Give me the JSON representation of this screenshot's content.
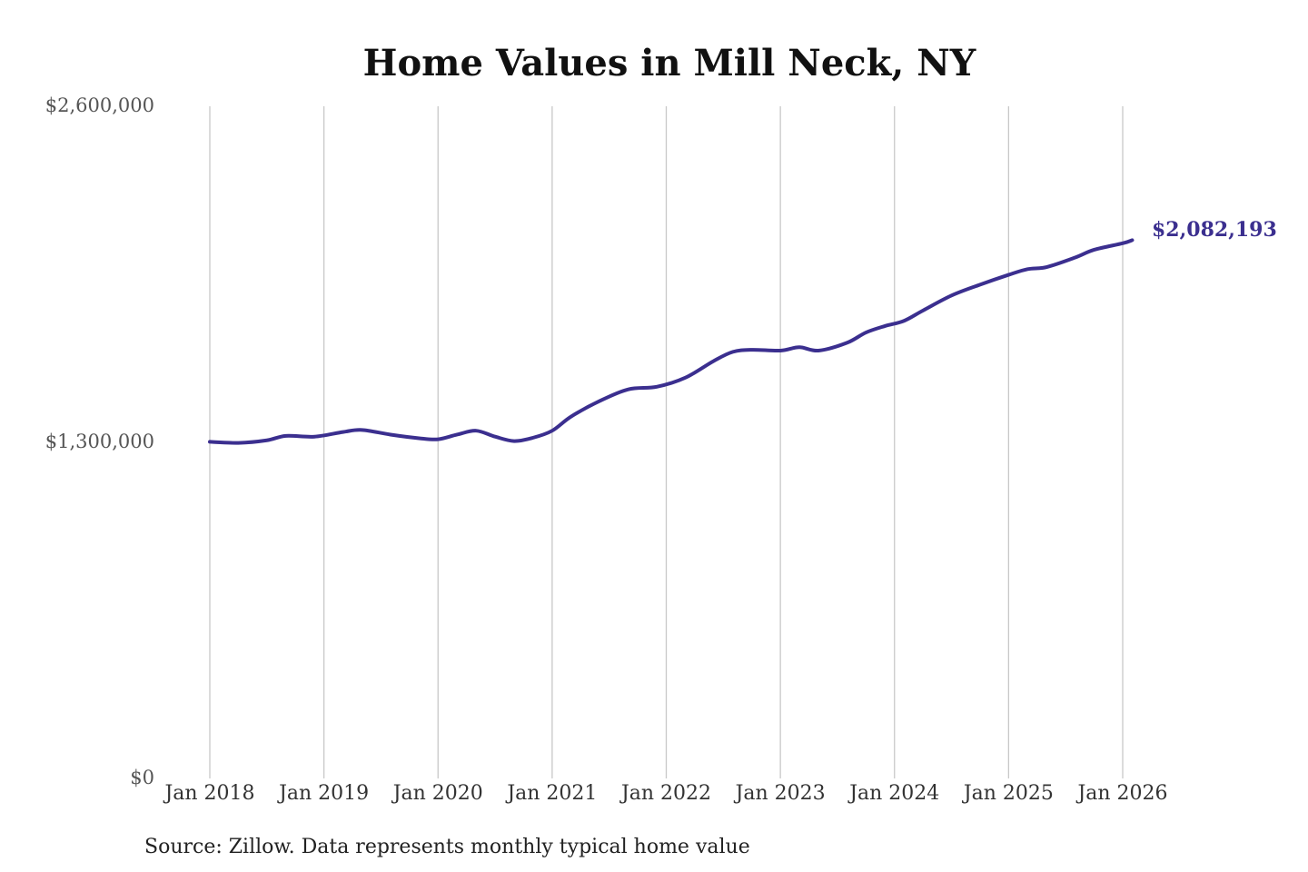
{
  "chart_data": {
    "type": "line",
    "title": "Home Values in Mill Neck, NY",
    "source": "Source: Zillow. Data represents monthly typical home value",
    "end_label": "$2,082,193",
    "line_color": "#3b2f8f",
    "ylim": [
      0,
      2600000
    ],
    "y_ticks": [
      {
        "value": 0,
        "label": "$0"
      },
      {
        "value": 1300000,
        "label": "$1,300,000"
      },
      {
        "value": 2600000,
        "label": "$2,600,000"
      }
    ],
    "x_ticks": [
      "Jan 2018",
      "Jan 2019",
      "Jan 2020",
      "Jan 2021",
      "Jan 2022",
      "Jan 2023",
      "Jan 2024",
      "Jan 2025",
      "Jan 2026"
    ],
    "xlim": [
      "2018-01",
      "2026-01"
    ],
    "grid": "vertical",
    "series": [
      {
        "x": [
          "2018-01",
          "2018-04",
          "2018-07",
          "2018-09",
          "2018-12",
          "2019-03",
          "2019-05",
          "2019-08",
          "2019-11",
          "2020-01",
          "2020-03",
          "2020-05",
          "2020-07",
          "2020-09",
          "2020-11",
          "2021-01",
          "2021-03",
          "2021-06",
          "2021-09",
          "2021-12",
          "2022-03",
          "2022-06",
          "2022-08",
          "2022-10",
          "2023-01",
          "2023-03",
          "2023-05",
          "2023-08",
          "2023-10",
          "2023-12",
          "2024-02",
          "2024-04",
          "2024-07",
          "2024-10",
          "2025-01",
          "2025-03",
          "2025-05",
          "2025-08",
          "2025-10",
          "2026-01",
          "2026-02"
        ],
        "values": [
          1302000,
          1298000,
          1308000,
          1325000,
          1322000,
          1340000,
          1348000,
          1330000,
          1316000,
          1312000,
          1330000,
          1345000,
          1322000,
          1305000,
          1318000,
          1345000,
          1400000,
          1460000,
          1505000,
          1515000,
          1550000,
          1615000,
          1650000,
          1658000,
          1655000,
          1668000,
          1655000,
          1685000,
          1725000,
          1750000,
          1770000,
          1810000,
          1868000,
          1910000,
          1948000,
          1970000,
          1978000,
          2015000,
          2045000,
          2070000,
          2082193
        ]
      }
    ]
  }
}
